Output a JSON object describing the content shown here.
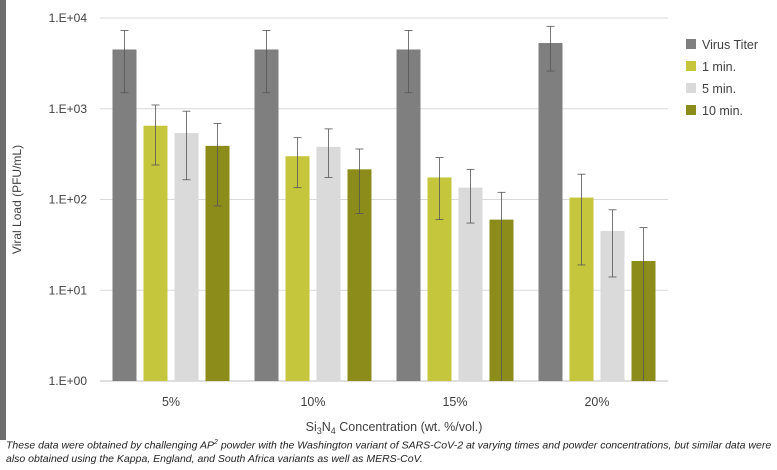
{
  "chart_data": {
    "type": "bar",
    "categories": [
      "5%",
      "10%",
      "15%",
      "20%"
    ],
    "series": [
      {
        "name": "Virus Titer",
        "color": "#7f7f7f",
        "values": [
          4500,
          4500,
          4500,
          5300
        ],
        "err_low": [
          1500,
          1500,
          1500,
          2600
        ],
        "err_high": [
          7300,
          7300,
          7300,
          8100
        ]
      },
      {
        "name": "1 min.",
        "color": "#c6c63c",
        "values": [
          650,
          300,
          175,
          105
        ],
        "err_low": [
          240,
          135,
          60,
          19
        ],
        "err_high": [
          1100,
          480,
          290,
          190
        ]
      },
      {
        "name": "5 min.",
        "color": "#dadada",
        "values": [
          540,
          380,
          135,
          45
        ],
        "err_low": [
          165,
          175,
          55,
          14
        ],
        "err_high": [
          940,
          600,
          215,
          77
        ]
      },
      {
        "name": "10 min.",
        "color": "#8c8c1a",
        "values": [
          390,
          215,
          60,
          21
        ],
        "err_low": [
          85,
          70,
          0,
          0
        ],
        "err_high": [
          690,
          360,
          120,
          49
        ]
      }
    ],
    "yscale": "log",
    "ylim": [
      1,
      10000
    ],
    "ytick_labels": [
      "1.E+00",
      "1.E+01",
      "1.E+02",
      "1.E+03",
      "1.E+04"
    ],
    "ylabel": "Viral Load (PFU/mL)",
    "xlabel_parts": [
      "Si",
      "3",
      "N",
      "4",
      " Concentration (wt. %/vol.)"
    ],
    "grid": true,
    "legend_position": "right"
  },
  "caption_parts": [
    "These data were obtained by challenging AP",
    "2",
    " powder with the Washington variant of SARS-CoV-2 at varying times and powder concentrations, but similar data were also obtained using the Kappa, England, and South Africa variants as well as MERS-CoV."
  ]
}
